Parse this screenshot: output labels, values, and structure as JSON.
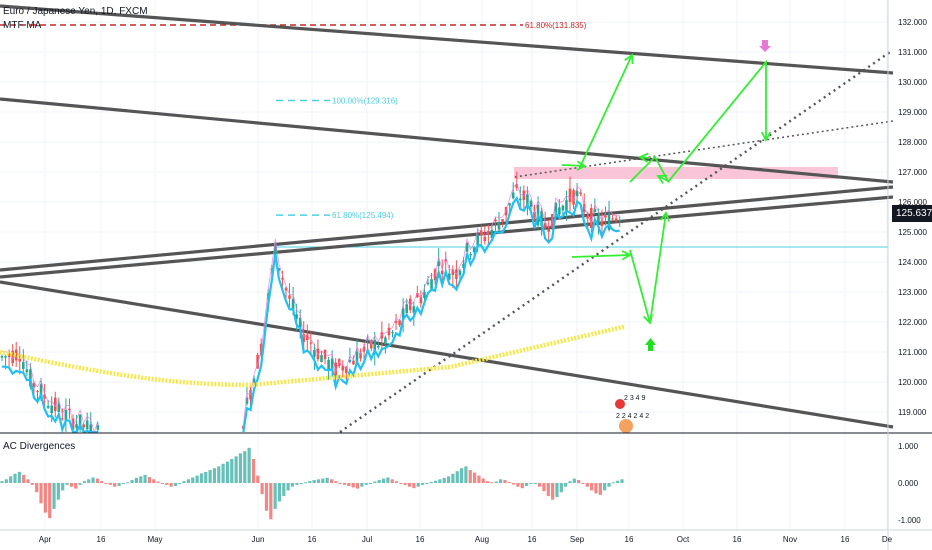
{
  "header": {
    "symbol": "Euro / Japanese Yen, 1D, FXCM",
    "indicator": "MTF MA"
  },
  "sub_panel": {
    "title": "AC Divergences"
  },
  "last_price": "125.637",
  "colors": {
    "up": "#26a69a",
    "down": "#ef5350",
    "ma_step": "#21c0f0",
    "ma_yellow": "#f5e94a",
    "trend": "#555555",
    "arrows": "#33ee33",
    "fib": "#4dd0e1",
    "fib_top": "#c62828",
    "zone": "#f8bbd0"
  },
  "chart_data": [
    {
      "type": "candlestick",
      "title": "",
      "y_ticks": [
        "132.000",
        "131.000",
        "130.000",
        "129.000",
        "128.000",
        "127.000",
        "126.000",
        "125.000",
        "124.000",
        "123.000",
        "122.000",
        "121.000",
        "120.000",
        "119.000"
      ],
      "x_ticks": [
        "Apr",
        "16",
        "May",
        "Jun",
        "16",
        "Jul",
        "16",
        "Aug",
        "16",
        "Sep",
        "16",
        "Oct",
        "16",
        "Nov",
        "16",
        "De"
      ],
      "ylim": [
        118.3,
        132.3
      ],
      "candles": [
        [
          120.6,
          121.1,
          120.2,
          120.9
        ],
        [
          120.9,
          121.0,
          119.9,
          120.1
        ],
        [
          120.1,
          120.3,
          119.2,
          119.4
        ],
        [
          119.4,
          119.8,
          118.9,
          119.6
        ],
        [
          119.6,
          119.8,
          118.7,
          118.9
        ],
        [
          118.9,
          119.3,
          118.5,
          119.1
        ],
        [
          119.1,
          119.3,
          118.7,
          118.8
        ],
        [
          118.8,
          119.2,
          118.5,
          119.0
        ],
        [
          126.0,
          126.5,
          125.1,
          125.3
        ],
        [
          125.3,
          125.8,
          124.6,
          125.6
        ],
        [
          125.6,
          126.1,
          125.0,
          125.2
        ],
        [
          125.2,
          125.9,
          124.6,
          125.7
        ],
        [
          125.7,
          127.0,
          125.3,
          126.2
        ],
        [
          126.2,
          126.8,
          125.2,
          125.5
        ],
        [
          125.5,
          126.0,
          124.9,
          125.8
        ],
        [
          125.8,
          126.4,
          125.1,
          125.3
        ],
        [
          125.3,
          125.9,
          124.6,
          125.5
        ],
        [
          125.5,
          126.3,
          125.0,
          125.637
        ]
      ],
      "fib_levels": [
        {
          "label": "61.80%(131.835)",
          "value": 131.835
        },
        {
          "label": "100.00%(129.316)",
          "value": 129.316
        },
        {
          "label": "61.80%(125.494)",
          "value": 125.494
        }
      ],
      "marker_labels": [
        "2 3 4 9",
        "2 2 4 2 4 2"
      ]
    },
    {
      "type": "bar",
      "title": "AC Divergences",
      "y_ticks": [
        "1.000",
        "0.000",
        "-1.000"
      ],
      "ylim": [
        -1.1,
        1.2
      ],
      "values": [
        0.05,
        0.1,
        0.18,
        0.25,
        0.3,
        0.22,
        0.1,
        -0.05,
        -0.25,
        -0.55,
        -0.8,
        -0.95,
        -0.7,
        -0.45,
        -0.2,
        -0.05,
        -0.1,
        -0.15,
        -0.05,
        0.05,
        0.1,
        0.15,
        0.12,
        0.05,
        0.0,
        -0.05,
        -0.1,
        -0.08,
        -0.02,
        0.02,
        0.08,
        0.14,
        0.18,
        0.22,
        0.16,
        0.1,
        0.04,
        0.0,
        -0.05,
        -0.1,
        -0.08,
        -0.02,
        0.05,
        0.1,
        0.15,
        0.2,
        0.26,
        0.3,
        0.35,
        0.4,
        0.45,
        0.52,
        0.58,
        0.65,
        0.72,
        0.8,
        0.86,
        0.95,
        0.65,
        0.2,
        -0.3,
        -0.75,
        -0.98,
        -0.7,
        -0.5,
        -0.35,
        -0.2,
        -0.1,
        -0.05,
        0.0,
        0.02,
        0.05,
        0.08,
        0.1,
        0.12,
        0.14,
        0.1,
        0.05,
        0.0,
        -0.05,
        -0.08,
        -0.12,
        -0.15,
        -0.1,
        -0.05,
        0.0,
        0.04,
        0.08,
        0.12,
        0.15,
        0.1,
        0.05,
        0.0,
        -0.05,
        -0.1,
        -0.14,
        -0.1,
        -0.05,
        0.0,
        0.03,
        0.06,
        0.1,
        0.14,
        0.18,
        0.25,
        0.32,
        0.4,
        0.45,
        0.35,
        0.28,
        0.2,
        0.12,
        0.05,
        0.02,
        0.04,
        0.1,
        0.08,
        0.03,
        -0.04,
        -0.1,
        -0.14,
        -0.08,
        -0.02,
        0.0,
        -0.1,
        -0.22,
        -0.35,
        -0.45,
        -0.38,
        -0.25,
        -0.1,
        0.05,
        0.12,
        0.08,
        -0.02,
        -0.1,
        -0.2,
        -0.28,
        -0.32,
        -0.2,
        -0.1,
        0.02,
        0.06,
        0.1
      ]
    }
  ]
}
